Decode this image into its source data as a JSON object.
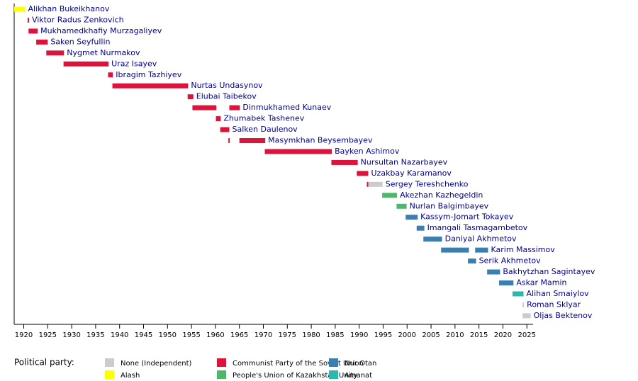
{
  "chart_data": {
    "type": "timeline",
    "xlim": [
      1918,
      2026
    ],
    "xticks": [
      1920,
      1925,
      1930,
      1935,
      1940,
      1945,
      1950,
      1955,
      1960,
      1965,
      1970,
      1975,
      1980,
      1985,
      1990,
      1995,
      2000,
      2005,
      2010,
      2015,
      2020,
      2025
    ],
    "legend_title": "Political party:",
    "parties": [
      {
        "name": "None (Independent)",
        "color": "#cccccc"
      },
      {
        "name": "Alash",
        "color": "#ffff00"
      },
      {
        "name": "Communist Party of the Soviet Union",
        "color": "#dc143c"
      },
      {
        "name": "People's Union of Kazakhstan Unity",
        "color": "#4db86b"
      },
      {
        "name": "Nur Otan",
        "color": "#3a7fb0"
      },
      {
        "name": "Amanat",
        "color": "#2eb8ac"
      }
    ],
    "rows": [
      {
        "name": "Alikhan Bukeikhanov",
        "periods": [
          {
            "start": 1918,
            "end": 1920.3,
            "party": 1
          }
        ]
      },
      {
        "name": "Viktor Radus Zenkovich",
        "periods": [
          {
            "start": 1920.8,
            "end": 1921.1,
            "party": 2
          }
        ]
      },
      {
        "name": "Mukhamedkhafiy Murzagaliyev",
        "periods": [
          {
            "start": 1921,
            "end": 1922.9,
            "party": 2
          }
        ]
      },
      {
        "name": "Saken Seyfullin",
        "periods": [
          {
            "start": 1922.6,
            "end": 1925,
            "party": 2
          }
        ]
      },
      {
        "name": "Nygmet Nurmakov",
        "periods": [
          {
            "start": 1924.7,
            "end": 1928.4,
            "party": 2
          }
        ]
      },
      {
        "name": "Uraz Isayev",
        "periods": [
          {
            "start": 1928.3,
            "end": 1937.7,
            "party": 2
          }
        ]
      },
      {
        "name": "Ibragim Tazhiyev",
        "periods": [
          {
            "start": 1937.6,
            "end": 1938.6,
            "party": 2
          }
        ]
      },
      {
        "name": "Nurtas Undasynov",
        "periods": [
          {
            "start": 1938.5,
            "end": 1954.3,
            "party": 2
          }
        ]
      },
      {
        "name": "Elubai Taibekov",
        "periods": [
          {
            "start": 1954.2,
            "end": 1955.4,
            "party": 2
          }
        ]
      },
      {
        "name": "Dinmukhamed Kunaev",
        "periods": [
          {
            "start": 1955.2,
            "end": 1960.2,
            "party": 2
          },
          {
            "start": 1962.9,
            "end": 1965.1,
            "party": 2
          }
        ]
      },
      {
        "name": "Zhumabek Tashenev",
        "periods": [
          {
            "start": 1960.1,
            "end": 1961.1,
            "party": 2
          }
        ]
      },
      {
        "name": "Salken Daulenov",
        "periods": [
          {
            "start": 1961,
            "end": 1962.9,
            "party": 2
          }
        ]
      },
      {
        "name": "Masymkhan Beysembayev",
        "periods": [
          {
            "start": 1962.7,
            "end": 1963,
            "party": 2
          },
          {
            "start": 1965,
            "end": 1970.4,
            "party": 2
          }
        ]
      },
      {
        "name": "Bayken Ashimov",
        "periods": [
          {
            "start": 1970.3,
            "end": 1984.3,
            "party": 2
          }
        ]
      },
      {
        "name": "Nursultan Nazarbayev",
        "periods": [
          {
            "start": 1984.2,
            "end": 1989.7,
            "party": 2
          }
        ]
      },
      {
        "name": "Uzakbay Karamanov",
        "periods": [
          {
            "start": 1989.5,
            "end": 1991.9,
            "party": 2
          }
        ]
      },
      {
        "name": "Sergey Tereshchenko",
        "periods": [
          {
            "start": 1991.6,
            "end": 1991.9,
            "party": 2
          },
          {
            "start": 1991.9,
            "end": 1994.9,
            "party": 0
          }
        ]
      },
      {
        "name": "Akezhan Kazhegeldin",
        "periods": [
          {
            "start": 1994.8,
            "end": 1997.9,
            "party": 3
          }
        ]
      },
      {
        "name": "Nurlan Balgimbayev",
        "periods": [
          {
            "start": 1997.8,
            "end": 1999.9,
            "party": 3
          }
        ]
      },
      {
        "name": "Kassym-Jomart Tokayev",
        "periods": [
          {
            "start": 1999.7,
            "end": 2002.2,
            "party": 4
          }
        ]
      },
      {
        "name": "Imangali Tasmagambetov",
        "periods": [
          {
            "start": 2002,
            "end": 2003.6,
            "party": 4
          }
        ]
      },
      {
        "name": "Daniyal Akhmetov",
        "periods": [
          {
            "start": 2003.4,
            "end": 2007.3,
            "party": 4
          }
        ]
      },
      {
        "name": "Karim Massimov",
        "periods": [
          {
            "start": 2007.1,
            "end": 2012.9,
            "party": 4
          },
          {
            "start": 2014.2,
            "end": 2016.9,
            "party": 4
          }
        ]
      },
      {
        "name": "Serik Akhmetov",
        "periods": [
          {
            "start": 2012.7,
            "end": 2014.4,
            "party": 4
          }
        ]
      },
      {
        "name": "Bakhytzhan Sagintayev",
        "periods": [
          {
            "start": 2016.7,
            "end": 2019.4,
            "party": 4
          }
        ]
      },
      {
        "name": "Askar Mamin",
        "periods": [
          {
            "start": 2019.2,
            "end": 2022.2,
            "party": 4
          }
        ]
      },
      {
        "name": "Alihan Smaiylov",
        "periods": [
          {
            "start": 2022,
            "end": 2024.3,
            "party": 5
          }
        ]
      },
      {
        "name": "Roman Sklyar",
        "periods": [
          {
            "start": 2024.1,
            "end": 2024.4,
            "party": 0
          }
        ]
      },
      {
        "name": "Oljas Bektenov",
        "periods": [
          {
            "start": 2024.1,
            "end": 2025.8,
            "party": 0
          }
        ]
      }
    ]
  }
}
